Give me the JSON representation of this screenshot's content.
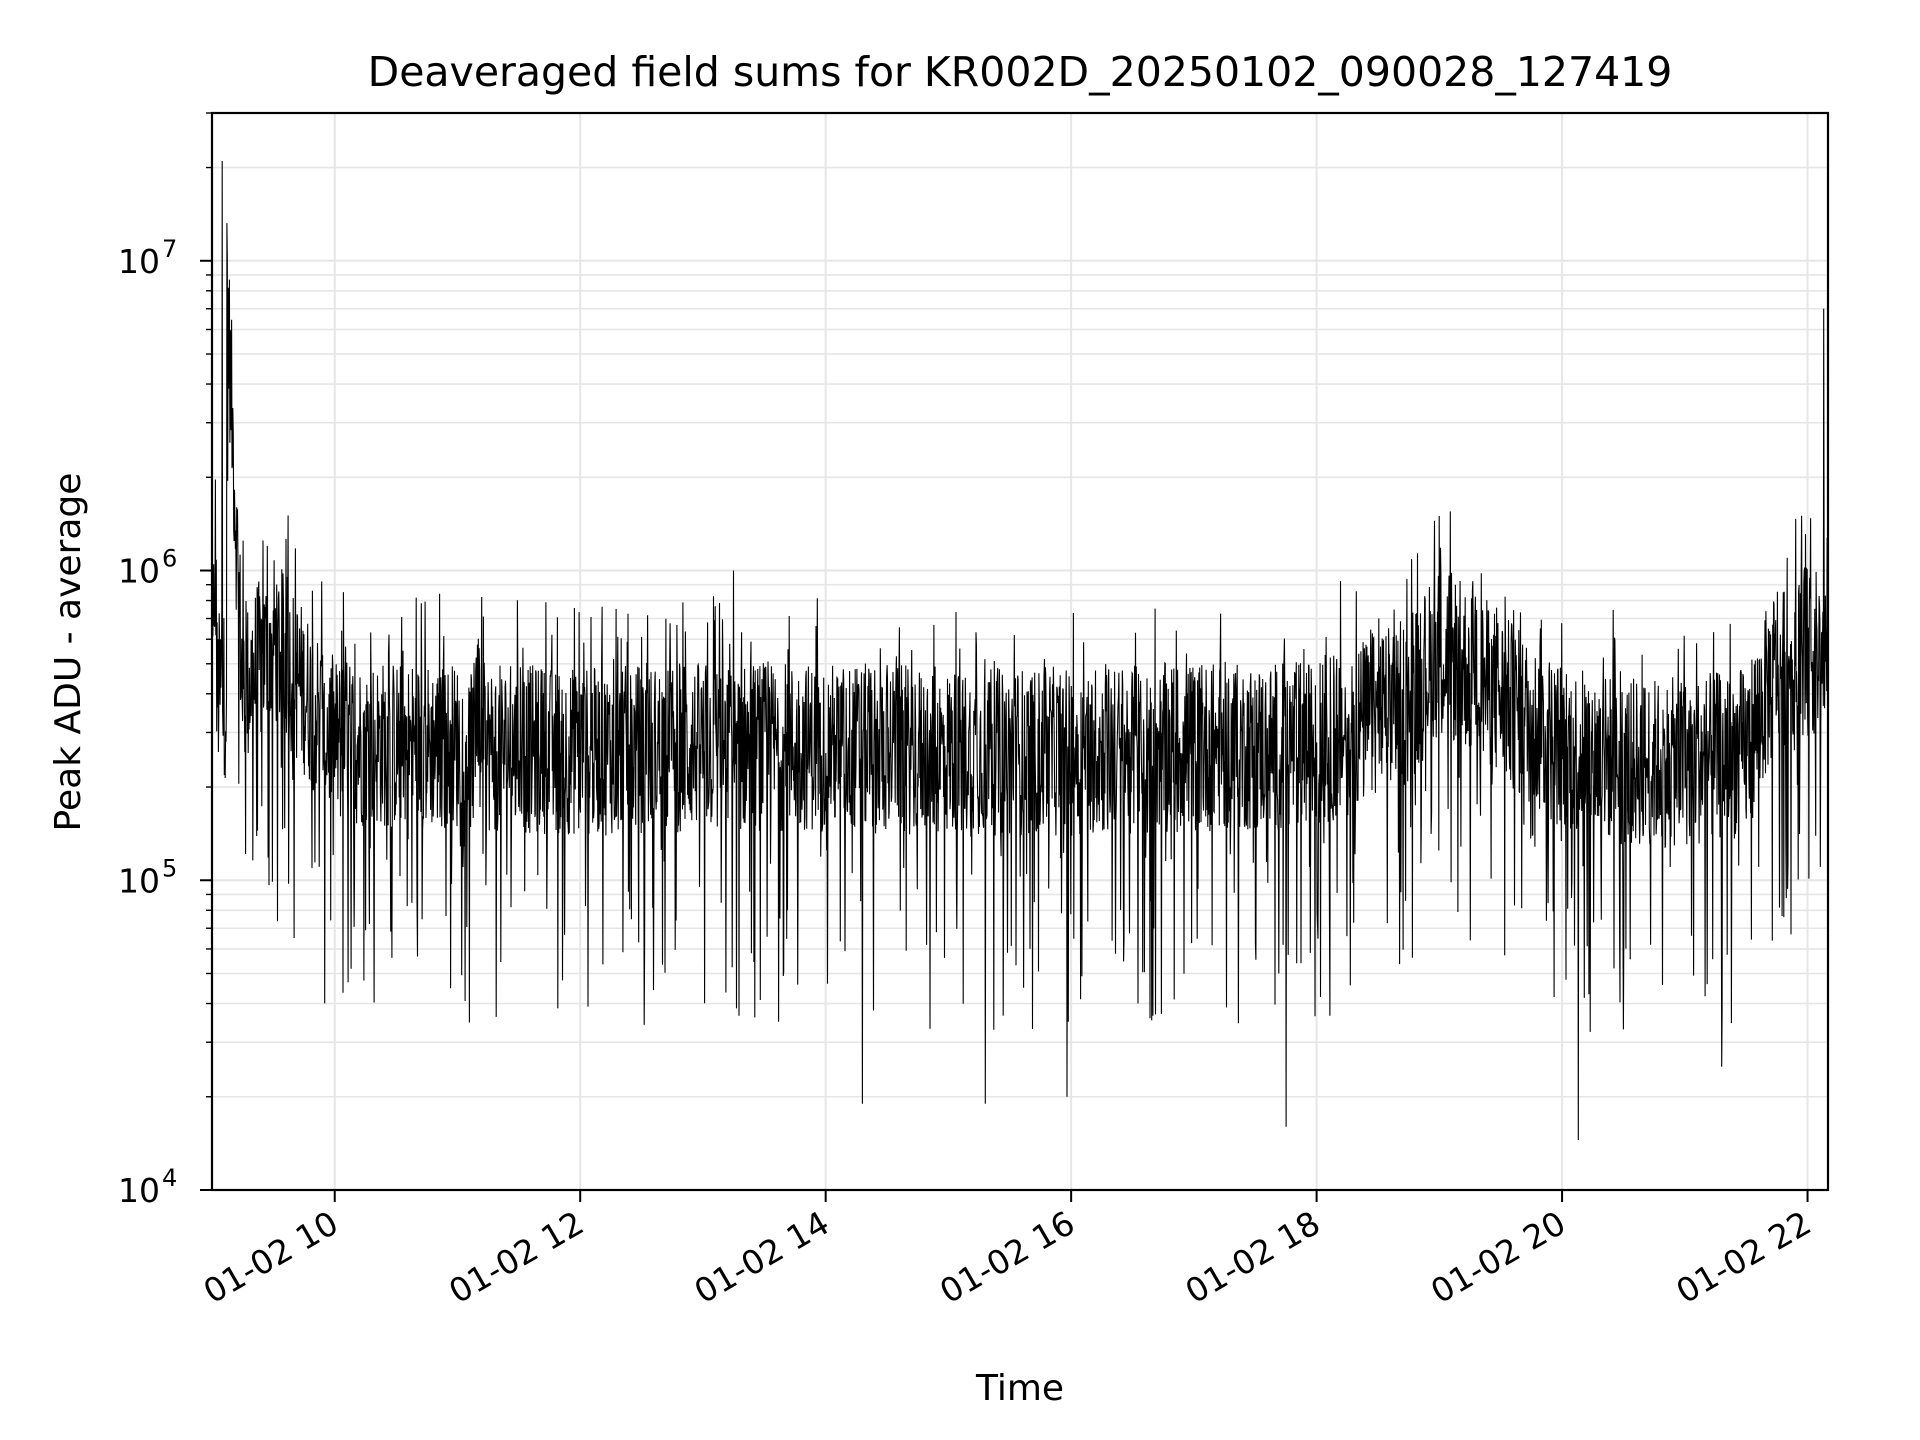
{
  "chart_data": {
    "type": "line",
    "title": "Deaveraged field sums for KR002D_20250102_090028_127419",
    "xlabel": "Time",
    "ylabel": "Peak ADU - average",
    "y_scale": "log",
    "ylim": [
      10000,
      30000000
    ],
    "xlim": [
      "01-02 09:00",
      "01-02 22:10"
    ],
    "grid": true,
    "line_color": "#000000",
    "grid_color": "#e6e6e6",
    "x_ticks": [
      {
        "label": "01-02 10",
        "value": "01-02 10:00"
      },
      {
        "label": "01-02 12",
        "value": "01-02 12:00"
      },
      {
        "label": "01-02 14",
        "value": "01-02 14:00"
      },
      {
        "label": "01-02 16",
        "value": "01-02 16:00"
      },
      {
        "label": "01-02 18",
        "value": "01-02 18:00"
      },
      {
        "label": "01-02 20",
        "value": "01-02 20:00"
      },
      {
        "label": "01-02 22",
        "value": "01-02 22:00"
      }
    ],
    "y_ticks": [
      {
        "base": "10",
        "exp": "4",
        "value": 10000
      },
      {
        "base": "10",
        "exp": "5",
        "value": 100000
      },
      {
        "base": "10",
        "exp": "6",
        "value": 1000000
      },
      {
        "base": "10",
        "exp": "7",
        "value": 10000000
      }
    ],
    "series": [
      {
        "description_points": "approximate envelope of the dense signal",
        "x": [
          "09:00",
          "09:05",
          "09:15",
          "09:30",
          "10:00",
          "11:00",
          "12:00",
          "13:00",
          "14:00",
          "15:00",
          "16:00",
          "17:00",
          "18:00",
          "18:45",
          "19:00",
          "19:20",
          "19:45",
          "20:00",
          "20:30",
          "21:00",
          "21:30",
          "21:45",
          "22:00",
          "22:10"
        ],
        "y": [
          350000,
          21000000,
          400000,
          600000,
          280000,
          270000,
          260000,
          270000,
          270000,
          260000,
          260000,
          270000,
          270000,
          380000,
          560000,
          450000,
          320000,
          270000,
          240000,
          240000,
          260000,
          500000,
          550000,
          520000
        ],
        "spikes_high": [
          {
            "x": "09:05",
            "y": 21000000
          },
          {
            "x": "09:10",
            "y": 2200000
          },
          {
            "x": "09:12",
            "y": 1600000
          },
          {
            "x": "09:25",
            "y": 1250000
          },
          {
            "x": "13:15",
            "y": 1000000
          },
          {
            "x": "19:00",
            "y": 1500000
          },
          {
            "x": "21:50",
            "y": 1100000
          },
          {
            "x": "22:08",
            "y": 7000000
          }
        ],
        "spikes_low": [
          {
            "x": "14:18",
            "y": 19000
          },
          {
            "x": "15:18",
            "y": 19000
          },
          {
            "x": "15:58",
            "y": 20000
          },
          {
            "x": "17:45",
            "y": 16000
          },
          {
            "x": "20:08",
            "y": 14500
          },
          {
            "x": "21:18",
            "y": 25000
          }
        ]
      }
    ]
  }
}
